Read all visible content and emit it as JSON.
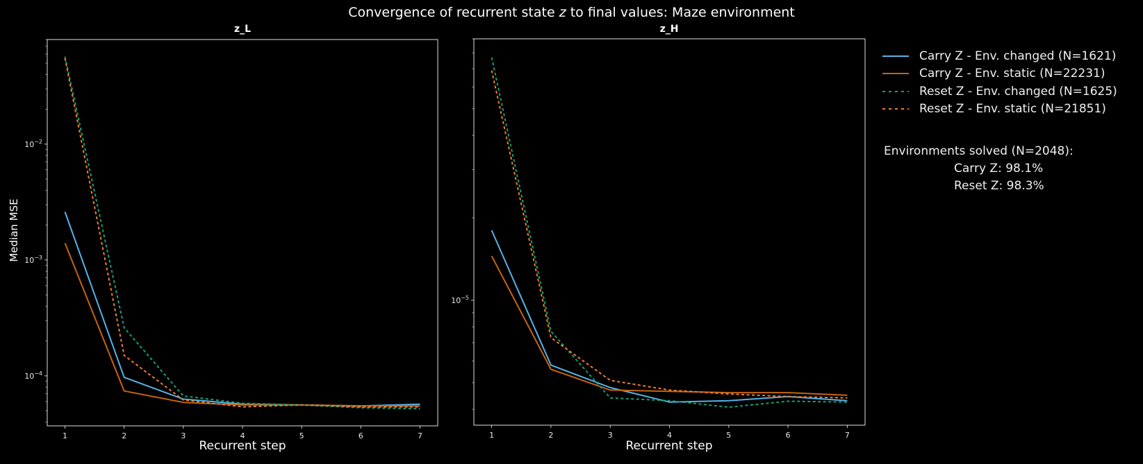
{
  "figure": {
    "suptitle_prefix": "Convergence of recurrent state ",
    "suptitle_var": "z",
    "suptitle_suffix": " to final values: Maze environment",
    "background": "#000000",
    "foreground": "#ffffff"
  },
  "legend": {
    "items": [
      {
        "label": "Carry Z - Env. changed (N=1621)",
        "color": "#56B4E9",
        "style": "solid"
      },
      {
        "label": "Carry Z - Env. static (N=22231)",
        "color": "#C8650F",
        "style": "solid"
      },
      {
        "label": "Reset Z - Env. changed (N=1625)",
        "color": "#0FA37A",
        "style": "dashed"
      },
      {
        "label": "Reset Z - Env. static (N=21851)",
        "color": "#F07E2A",
        "style": "dashed"
      }
    ]
  },
  "annotation": {
    "heading": "Environments solved (N=2048):",
    "carry": "Carry Z: 98.1%",
    "reset": "Reset Z: 98.3%"
  },
  "chart_data": [
    {
      "type": "line",
      "title": "z_L",
      "xlabel": "Recurrent step",
      "ylabel": "Median MSE",
      "yscale": "log",
      "ylim": [
        3.7e-05,
        0.08
      ],
      "xlim": [
        0.7,
        7.3
      ],
      "x": [
        1,
        2,
        3,
        4,
        5,
        6,
        7
      ],
      "xticks": [
        "1",
        "2",
        "3",
        "4",
        "5",
        "6",
        "7"
      ],
      "yticks": [
        {
          "value": 0.01,
          "label": "10^-2"
        },
        {
          "value": 0.001,
          "label": "10^-3"
        },
        {
          "value": 0.0001,
          "label": "10^-4"
        }
      ],
      "grid": false,
      "series": [
        {
          "name": "Carry Z - Env. changed (N=1621)",
          "values": [
            0.0026,
            9.7e-05,
            6.3e-05,
            5.7e-05,
            5.6e-05,
            5.5e-05,
            5.7e-05
          ]
        },
        {
          "name": "Carry Z - Env. static (N=22231)",
          "values": [
            0.0014,
            7.4e-05,
            5.9e-05,
            5.6e-05,
            5.6e-05,
            5.5e-05,
            5.5e-05
          ]
        },
        {
          "name": "Reset Z - Env. changed (N=1625)",
          "values": [
            0.057,
            0.00026,
            6.7e-05,
            5.8e-05,
            5.6e-05,
            5.3e-05,
            5.2e-05
          ]
        },
        {
          "name": "Reset Z - Env. static (N=21851)",
          "values": [
            0.055,
            0.00015,
            6.2e-05,
            5.4e-05,
            5.6e-05,
            5.4e-05,
            5.4e-05
          ]
        }
      ]
    },
    {
      "type": "line",
      "title": "z_H",
      "xlabel": "Recurrent step",
      "ylabel": "",
      "yscale": "log",
      "ylim": [
        3.5e-06,
        9e-05
      ],
      "xlim": [
        0.7,
        7.3
      ],
      "x": [
        1,
        2,
        3,
        4,
        5,
        6,
        7
      ],
      "xticks": [
        "1",
        "2",
        "3",
        "4",
        "5",
        "6",
        "7"
      ],
      "yticks": [
        {
          "value": 1e-05,
          "label": "10^-5"
        }
      ],
      "grid": false,
      "series": [
        {
          "name": "Carry Z - Env. changed (N=1621)",
          "values": [
            1.8e-05,
            5.8e-06,
            4.8e-06,
            4.25e-06,
            4.3e-06,
            4.45e-06,
            4.3e-06
          ]
        },
        {
          "name": "Carry Z - Env. static (N=22231)",
          "values": [
            1.45e-05,
            5.6e-06,
            4.7e-06,
            4.65e-06,
            4.6e-06,
            4.6e-06,
            4.5e-06
          ]
        },
        {
          "name": "Reset Z - Env. changed (N=1625)",
          "values": [
            7.7e-05,
            7.7e-06,
            4.4e-06,
            4.3e-06,
            4.07e-06,
            4.28e-06,
            4.25e-06
          ]
        },
        {
          "name": "Reset Z - Env. static (N=21851)",
          "values": [
            6.9e-05,
            7.3e-06,
            5.1e-06,
            4.7e-06,
            4.55e-06,
            4.45e-06,
            4.4e-06
          ]
        }
      ]
    }
  ]
}
